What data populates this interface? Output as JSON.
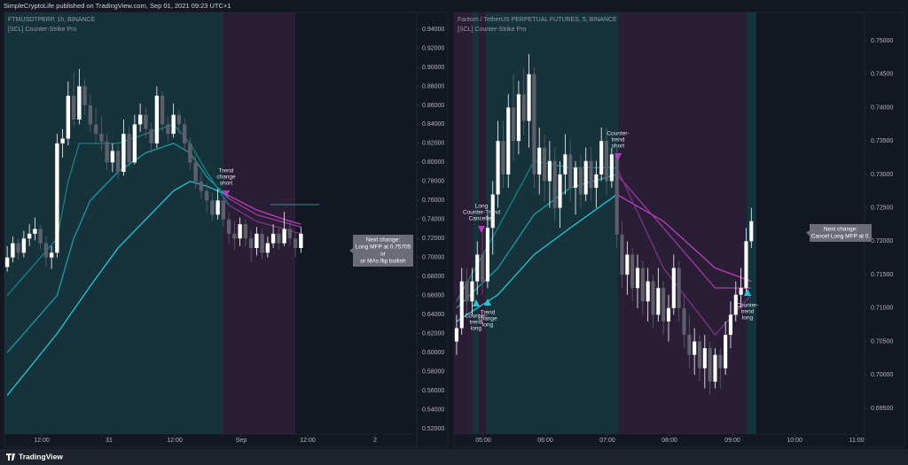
{
  "header": {
    "text": "SimpleCryptoLife published on TradingView.com, Sep 01, 2021 09:23 UTC+1"
  },
  "footer": {
    "brand": "TradingView"
  },
  "chart_data": [
    {
      "type": "candlestick",
      "title": "FTMUSDTPERP, 1h, BINANCE",
      "subtitle": "[SCL] Counter-Strike Pro",
      "up_color": "#ffffff",
      "down_color": "#5d606b",
      "xlim": [
        -0.5,
        73.9
      ],
      "xticks": [
        {
          "value": 6.22,
          "label": "12:00"
        },
        {
          "value": 18.38,
          "label": "31"
        },
        {
          "value": 30.22,
          "label": "12:00"
        },
        {
          "value": 42.22,
          "label": "Sep"
        },
        {
          "value": 54.22,
          "label": "12:00"
        },
        {
          "value": 66.38,
          "label": "2"
        }
      ],
      "ylim": [
        0.5144,
        0.9577
      ],
      "yticks": [
        {
          "value": 0.52,
          "label": "0.52000"
        },
        {
          "value": 0.54,
          "label": "0.54000"
        },
        {
          "value": 0.56,
          "label": "0.56000"
        },
        {
          "value": 0.58,
          "label": "0.58000"
        },
        {
          "value": 0.6,
          "label": "0.60000"
        },
        {
          "value": 0.62,
          "label": "0.62000"
        },
        {
          "value": 0.64,
          "label": "0.64000"
        },
        {
          "value": 0.66,
          "label": "0.66000"
        },
        {
          "value": 0.68,
          "label": "0.68000"
        },
        {
          "value": 0.7,
          "label": "0.70000"
        },
        {
          "value": 0.72,
          "label": "0.72000"
        },
        {
          "value": 0.74,
          "label": "0.74000"
        },
        {
          "value": 0.76,
          "label": "0.76000"
        },
        {
          "value": 0.78,
          "label": "0.78000"
        },
        {
          "value": 0.8,
          "label": "0.80000"
        },
        {
          "value": 0.82,
          "label": "0.82000"
        },
        {
          "value": 0.84,
          "label": "0.84000"
        },
        {
          "value": 0.86,
          "label": "0.86000"
        },
        {
          "value": 0.88,
          "label": "0.88000"
        },
        {
          "value": 0.9,
          "label": "0.90000"
        },
        {
          "value": 0.92,
          "label": "0.92000"
        },
        {
          "value": 0.94,
          "label": "0.94000"
        }
      ],
      "ohlc": [
        [
          0.69,
          0.712,
          0.685,
          0.7
        ],
        [
          0.7,
          0.722,
          0.695,
          0.715
        ],
        [
          0.715,
          0.72,
          0.698,
          0.705
        ],
        [
          0.705,
          0.728,
          0.7,
          0.72
        ],
        [
          0.72,
          0.735,
          0.712,
          0.725
        ],
        [
          0.725,
          0.742,
          0.718,
          0.73
        ],
        [
          0.73,
          0.735,
          0.708,
          0.715
        ],
        [
          0.715,
          0.722,
          0.69,
          0.7
        ],
        [
          0.7,
          0.712,
          0.688,
          0.705
        ],
        [
          0.705,
          0.83,
          0.7,
          0.82
        ],
        [
          0.82,
          0.835,
          0.805,
          0.825
        ],
        [
          0.825,
          0.885,
          0.818,
          0.87
        ],
        [
          0.87,
          0.895,
          0.838,
          0.845
        ],
        [
          0.845,
          0.898,
          0.84,
          0.88
        ],
        [
          0.88,
          0.888,
          0.85,
          0.86
        ],
        [
          0.86,
          0.872,
          0.832,
          0.84
        ],
        [
          0.84,
          0.858,
          0.82,
          0.83
        ],
        [
          0.83,
          0.848,
          0.812,
          0.822
        ],
        [
          0.822,
          0.83,
          0.792,
          0.8
        ],
        [
          0.8,
          0.82,
          0.79,
          0.812
        ],
        [
          0.812,
          0.818,
          0.782,
          0.79
        ],
        [
          0.79,
          0.845,
          0.786,
          0.83
        ],
        [
          0.83,
          0.838,
          0.795,
          0.8
        ],
        [
          0.8,
          0.85,
          0.798,
          0.84
        ],
        [
          0.84,
          0.862,
          0.832,
          0.85
        ],
        [
          0.85,
          0.858,
          0.825,
          0.835
        ],
        [
          0.835,
          0.842,
          0.81,
          0.82
        ],
        [
          0.82,
          0.88,
          0.815,
          0.87
        ],
        [
          0.87,
          0.875,
          0.832,
          0.84
        ],
        [
          0.84,
          0.848,
          0.822,
          0.83
        ],
        [
          0.83,
          0.862,
          0.826,
          0.85
        ],
        [
          0.85,
          0.855,
          0.83,
          0.84
        ],
        [
          0.84,
          0.846,
          0.812,
          0.82
        ],
        [
          0.82,
          0.826,
          0.792,
          0.8
        ],
        [
          0.8,
          0.808,
          0.772,
          0.78
        ],
        [
          0.78,
          0.79,
          0.762,
          0.77
        ],
        [
          0.77,
          0.778,
          0.748,
          0.76
        ],
        [
          0.76,
          0.768,
          0.738,
          0.745
        ],
        [
          0.745,
          0.772,
          0.74,
          0.76
        ],
        [
          0.76,
          0.764,
          0.732,
          0.74
        ],
        [
          0.74,
          0.748,
          0.715,
          0.725
        ],
        [
          0.725,
          0.738,
          0.708,
          0.72
        ],
        [
          0.72,
          0.742,
          0.712,
          0.735
        ],
        [
          0.735,
          0.74,
          0.712,
          0.72
        ],
        [
          0.72,
          0.728,
          0.695,
          0.71
        ],
        [
          0.71,
          0.732,
          0.702,
          0.725
        ],
        [
          0.725,
          0.73,
          0.698,
          0.705
        ],
        [
          0.705,
          0.722,
          0.7,
          0.715
        ],
        [
          0.715,
          0.735,
          0.71,
          0.725
        ],
        [
          0.725,
          0.73,
          0.708,
          0.715
        ],
        [
          0.715,
          0.748,
          0.712,
          0.73
        ],
        [
          0.73,
          0.738,
          0.712,
          0.72
        ],
        [
          0.72,
          0.726,
          0.7,
          0.71
        ],
        [
          0.71,
          0.732,
          0.705,
          0.725
        ]
      ],
      "lines": [
        {
          "color": "#26c6da",
          "x": [
            0,
            9,
            15,
            20,
            25,
            30,
            33,
            36,
            40
          ],
          "values": [
            0.555,
            0.62,
            0.67,
            0.71,
            0.74,
            0.77,
            0.78,
            0.775,
            0.765
          ]
        },
        {
          "color": "#1f9aa6",
          "x": [
            0,
            9,
            12,
            15,
            20,
            25,
            30,
            33,
            36,
            40
          ],
          "values": [
            0.6,
            0.66,
            0.72,
            0.76,
            0.79,
            0.81,
            0.82,
            0.81,
            0.785,
            0.762
          ]
        },
        {
          "color": "#16808a",
          "x": [
            0,
            9,
            11,
            13,
            20,
            25,
            30,
            33,
            36,
            40
          ],
          "values": [
            0.66,
            0.72,
            0.78,
            0.82,
            0.82,
            0.83,
            0.84,
            0.82,
            0.79,
            0.755
          ]
        },
        {
          "color": "#c03fc0",
          "x": [
            40,
            45,
            50,
            53
          ],
          "values": [
            0.765,
            0.75,
            0.74,
            0.735
          ]
        },
        {
          "color": "#9c3a9f",
          "x": [
            40,
            45,
            53
          ],
          "values": [
            0.762,
            0.745,
            0.732
          ]
        },
        {
          "color": "#7d3384",
          "x": [
            40,
            45,
            53
          ],
          "values": [
            0.755,
            0.738,
            0.725
          ]
        }
      ],
      "annotations": [
        [
          "Trend",
          "change",
          "short"
        ]
      ],
      "callout": [
        "Next change:",
        "Long MFP at 0.75705",
        "or",
        "or MAs flip bullish"
      ]
    },
    {
      "type": "candlestick",
      "title": "Fantom / TetherUS PERPETUAL FUTURES, 5, BINANCE",
      "subtitle": "[SCL] Counter-Strike Pro",
      "up_color": "#ffffff",
      "down_color": "#5d606b",
      "xlim": [
        -0.5,
        78.9
      ],
      "xticks": [
        {
          "value": 5.16,
          "label": "05:00"
        },
        {
          "value": 17.17,
          "label": "06:00"
        },
        {
          "value": 29.17,
          "label": "07:00"
        },
        {
          "value": 41.18,
          "label": "08:00"
        },
        {
          "value": 53.36,
          "label": "09:00"
        },
        {
          "value": 65.37,
          "label": "10:00"
        },
        {
          "value": 77.37,
          "label": "11:00"
        }
      ],
      "ylim": [
        0.69116,
        0.75424
      ],
      "yticks": [
        {
          "value": 0.695,
          "label": "0.69500"
        },
        {
          "value": 0.7,
          "label": "0.70000"
        },
        {
          "value": 0.705,
          "label": "0.70500"
        },
        {
          "value": 0.71,
          "label": "0.71000"
        },
        {
          "value": 0.715,
          "label": "0.71500"
        },
        {
          "value": 0.72,
          "label": "0.72000"
        },
        {
          "value": 0.725,
          "label": "0.72500"
        },
        {
          "value": 0.73,
          "label": "0.73000"
        },
        {
          "value": 0.735,
          "label": "0.73500"
        },
        {
          "value": 0.74,
          "label": "0.74000"
        },
        {
          "value": 0.745,
          "label": "0.74500"
        },
        {
          "value": 0.75,
          "label": "0.75000"
        }
      ],
      "ohlc": [
        [
          0.705,
          0.709,
          0.703,
          0.707
        ],
        [
          0.707,
          0.716,
          0.706,
          0.714
        ],
        [
          0.714,
          0.716,
          0.709,
          0.711
        ],
        [
          0.711,
          0.716,
          0.709,
          0.714
        ],
        [
          0.714,
          0.72,
          0.712,
          0.718
        ],
        [
          0.718,
          0.722,
          0.712,
          0.714
        ],
        [
          0.714,
          0.724,
          0.713,
          0.722
        ],
        [
          0.722,
          0.729,
          0.718,
          0.727
        ],
        [
          0.727,
          0.738,
          0.725,
          0.735
        ],
        [
          0.735,
          0.738,
          0.728,
          0.73
        ],
        [
          0.73,
          0.742,
          0.728,
          0.74
        ],
        [
          0.74,
          0.745,
          0.732,
          0.735
        ],
        [
          0.735,
          0.744,
          0.733,
          0.742
        ],
        [
          0.742,
          0.746,
          0.736,
          0.738
        ],
        [
          0.738,
          0.748,
          0.734,
          0.745
        ],
        [
          0.745,
          0.746,
          0.728,
          0.73
        ],
        [
          0.73,
          0.737,
          0.727,
          0.734
        ],
        [
          0.734,
          0.736,
          0.726,
          0.729
        ],
        [
          0.729,
          0.735,
          0.725,
          0.732
        ],
        [
          0.732,
          0.734,
          0.723,
          0.725
        ],
        [
          0.725,
          0.732,
          0.722,
          0.73
        ],
        [
          0.73,
          0.736,
          0.727,
          0.733
        ],
        [
          0.733,
          0.735,
          0.726,
          0.728
        ],
        [
          0.728,
          0.732,
          0.724,
          0.731
        ],
        [
          0.731,
          0.733,
          0.725,
          0.727
        ],
        [
          0.727,
          0.734,
          0.726,
          0.732
        ],
        [
          0.732,
          0.734,
          0.726,
          0.728
        ],
        [
          0.728,
          0.732,
          0.725,
          0.73
        ],
        [
          0.73,
          0.737,
          0.729,
          0.735
        ],
        [
          0.735,
          0.737,
          0.727,
          0.729
        ],
        [
          0.729,
          0.734,
          0.728,
          0.733
        ],
        [
          0.733,
          0.734,
          0.719,
          0.721
        ],
        [
          0.721,
          0.723,
          0.713,
          0.715
        ],
        [
          0.715,
          0.72,
          0.712,
          0.718
        ],
        [
          0.718,
          0.719,
          0.711,
          0.713
        ],
        [
          0.713,
          0.718,
          0.71,
          0.716
        ],
        [
          0.716,
          0.717,
          0.709,
          0.711
        ],
        [
          0.711,
          0.716,
          0.708,
          0.714
        ],
        [
          0.714,
          0.715,
          0.707,
          0.709
        ],
        [
          0.709,
          0.716,
          0.708,
          0.713
        ],
        [
          0.713,
          0.714,
          0.706,
          0.708
        ],
        [
          0.708,
          0.712,
          0.705,
          0.71
        ],
        [
          0.71,
          0.718,
          0.709,
          0.716
        ],
        [
          0.716,
          0.717,
          0.708,
          0.71
        ],
        [
          0.71,
          0.712,
          0.704,
          0.706
        ],
        [
          0.706,
          0.709,
          0.701,
          0.703
        ],
        [
          0.703,
          0.707,
          0.7,
          0.705
        ],
        [
          0.705,
          0.706,
          0.699,
          0.701
        ],
        [
          0.701,
          0.706,
          0.698,
          0.704
        ],
        [
          0.704,
          0.705,
          0.697,
          0.699
        ],
        [
          0.699,
          0.704,
          0.698,
          0.703
        ],
        [
          0.703,
          0.704,
          0.698,
          0.701
        ],
        [
          0.701,
          0.708,
          0.7,
          0.706
        ],
        [
          0.706,
          0.711,
          0.704,
          0.709
        ],
        [
          0.709,
          0.714,
          0.708,
          0.712
        ],
        [
          0.712,
          0.716,
          0.71,
          0.713
        ],
        [
          0.713,
          0.722,
          0.712,
          0.72
        ],
        [
          0.72,
          0.725,
          0.719,
          0.723
        ]
      ],
      "lines": [
        {
          "color": "#26c6da",
          "x": [
            0,
            8,
            15,
            22,
            31
          ],
          "values": [
            0.708,
            0.712,
            0.718,
            0.722,
            0.727
          ]
        },
        {
          "color": "#1f9aa6",
          "x": [
            0,
            8,
            15,
            22,
            31
          ],
          "values": [
            0.71,
            0.716,
            0.724,
            0.728,
            0.73
          ]
        },
        {
          "color": "#16808a",
          "x": [
            0,
            8,
            15,
            22,
            31
          ],
          "values": [
            0.711,
            0.722,
            0.732,
            0.731,
            0.731
          ]
        },
        {
          "color": "#c03fc0",
          "x": [
            31,
            40,
            50,
            57
          ],
          "values": [
            0.727,
            0.723,
            0.716,
            0.714
          ]
        },
        {
          "color": "#9c3a9f",
          "x": [
            31,
            40,
            50,
            57
          ],
          "values": [
            0.73,
            0.722,
            0.713,
            0.713
          ]
        },
        {
          "color": "#7d3384",
          "x": [
            31,
            40,
            50,
            57
          ],
          "values": [
            0.731,
            0.716,
            0.706,
            0.712
          ]
        }
      ],
      "annotations": [
        [
          "Long",
          "Counter-Trend",
          "Cancelled"
        ],
        [
          "Counter-",
          "trend",
          "long"
        ],
        [
          "Trend",
          "change",
          "long"
        ],
        [
          "Counter-",
          "trend",
          "short"
        ],
        [
          "Counter-",
          "trend",
          "long"
        ]
      ],
      "callout": [
        "Next change:",
        "Cancel Long MFP at 0."
      ]
    }
  ]
}
